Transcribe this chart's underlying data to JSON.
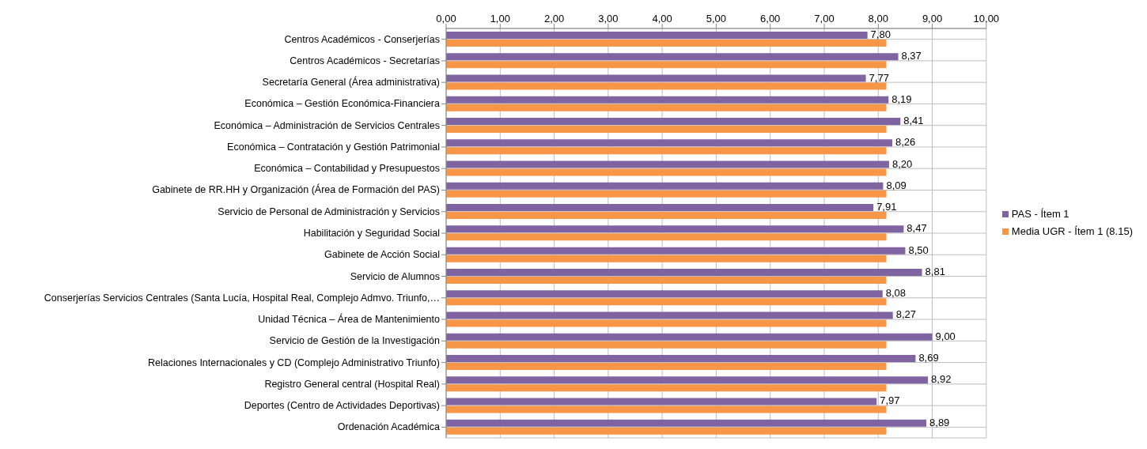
{
  "chart_data": {
    "type": "bar",
    "orientation": "horizontal",
    "categories": [
      "Centros Académicos - Conserjerías",
      "Centros Académicos - Secretarías",
      "Secretaría General (Área administrativa)",
      "Económica – Gestión Económica-Financiera",
      "Económica – Administración de Servicios Centrales",
      "Económica – Contratación y Gestión Patrimonial",
      "Económica – Contabilidad y Presupuestos",
      "Gabinete de RR.HH y Organización (Área de Formación del PAS)",
      "Servicio de Personal de Administración y Servicios",
      "Habilitación y Seguridad Social",
      "Gabinete de Acción Social",
      "Servicio de Alumnos",
      "Conserjerías Servicios Centrales (Santa Lucía, Hospital Real, Complejo Admvo. Triunfo,…",
      "Unidad Técnica – Área de Mantenimiento",
      "Servicio de Gestión de la Investigación",
      "Relaciones Internacionales y CD (Complejo Administrativo Triunfo)",
      "Registro General central (Hospital Real)",
      "Deportes (Centro de Actividades Deportivas)",
      "Ordenación Académica"
    ],
    "series": [
      {
        "name": "PAS - Ítem 1",
        "color": "#8064a2",
        "values": [
          7.8,
          8.37,
          7.77,
          8.19,
          8.41,
          8.26,
          8.2,
          8.09,
          7.91,
          8.47,
          8.5,
          8.81,
          8.08,
          8.27,
          9.0,
          8.69,
          8.92,
          7.97,
          8.89
        ],
        "value_labels": [
          "7,80",
          "8,37",
          "7,77",
          "8,19",
          "8,41",
          "8,26",
          "8,20",
          "8,09",
          "7,91",
          "8,47",
          "8,50",
          "8,81",
          "8,08",
          "8,27",
          "9,00",
          "8,69",
          "8,92",
          "7,97",
          "8,89"
        ]
      },
      {
        "name": "Media UGR - Ítem 1 (8.15)",
        "color": "#f79646",
        "values": [
          8.15,
          8.15,
          8.15,
          8.15,
          8.15,
          8.15,
          8.15,
          8.15,
          8.15,
          8.15,
          8.15,
          8.15,
          8.15,
          8.15,
          8.15,
          8.15,
          8.15,
          8.15,
          8.15
        ]
      }
    ],
    "xlim": [
      0,
      10
    ],
    "xticks": [
      {
        "value": 0,
        "label": "0,00"
      },
      {
        "value": 1,
        "label": "1,00"
      },
      {
        "value": 2,
        "label": "2,00"
      },
      {
        "value": 3,
        "label": "3,00"
      },
      {
        "value": 4,
        "label": "4,00"
      },
      {
        "value": 5,
        "label": "5,00"
      },
      {
        "value": 6,
        "label": "6,00"
      },
      {
        "value": 7,
        "label": "7,00"
      },
      {
        "value": 8,
        "label": "8,00"
      },
      {
        "value": 9,
        "label": "9,00"
      },
      {
        "value": 10,
        "label": "10,00"
      }
    ],
    "grid": true,
    "legend": "right"
  }
}
